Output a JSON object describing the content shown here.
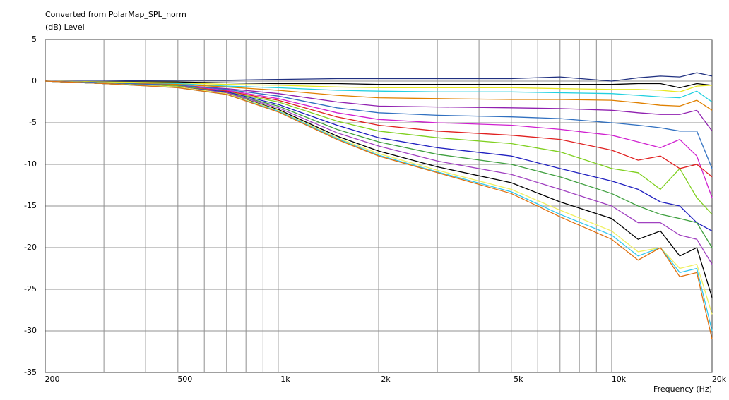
{
  "chart_data": {
    "type": "line",
    "title": "Converted from PolarMap_SPL_norm",
    "ylabel": "(dB)  Level",
    "xlabel": "Frequency  (Hz)",
    "log_x": true,
    "grid": true,
    "x": [
      200,
      300,
      500,
      700,
      1000,
      1500,
      2000,
      3000,
      5000,
      7000,
      10000,
      12000,
      14000,
      16000,
      18000,
      20000
    ],
    "xlim": [
      200,
      20000
    ],
    "xticks": [
      200,
      500,
      {
        "value": 1000,
        "label": "1k"
      },
      {
        "value": 2000,
        "label": "2k"
      },
      {
        "value": 5000,
        "label": "5k"
      },
      {
        "value": 10000,
        "label": "10k"
      },
      {
        "value": 20000,
        "label": "20k"
      }
    ],
    "xgrid": [
      300,
      400,
      600,
      700,
      800,
      900,
      3000,
      4000,
      6000,
      7000,
      8000,
      9000
    ],
    "ylim": [
      -35,
      5
    ],
    "yticks": [
      5,
      0,
      -5,
      -10,
      -15,
      -20,
      -25,
      -30,
      -35
    ],
    "series": [
      {
        "color": "#203080",
        "values": [
          0,
          0,
          0.1,
          0.1,
          0.2,
          0.3,
          0.3,
          0.3,
          0.3,
          0.5,
          0,
          0.4,
          0.6,
          0.5,
          1,
          0.6
        ]
      },
      {
        "color": "#000000",
        "values": [
          0,
          -0.1,
          -0.1,
          -0.2,
          -0.3,
          -0.3,
          -0.4,
          -0.4,
          -0.4,
          -0.4,
          -0.4,
          -0.3,
          -0.3,
          -0.8,
          -0.3,
          -0.5
        ]
      },
      {
        "color": "#e8e820",
        "values": [
          0,
          -0.1,
          -0.2,
          -0.4,
          -0.5,
          -0.7,
          -0.8,
          -0.8,
          -0.8,
          -0.9,
          -1,
          -1,
          -1.1,
          -1.3,
          -0.6,
          -0.5
        ]
      },
      {
        "color": "#20d0e0",
        "values": [
          0,
          -0.2,
          -0.3,
          -0.6,
          -0.8,
          -1.1,
          -1.2,
          -1.3,
          -1.3,
          -1.4,
          -1.5,
          -1.7,
          -1.9,
          -2,
          -1.2,
          -2.5
        ]
      },
      {
        "color": "#e08000",
        "values": [
          0,
          -0.2,
          -0.4,
          -0.7,
          -1.1,
          -1.7,
          -2,
          -2.1,
          -2.2,
          -2.2,
          -2.3,
          -2.6,
          -2.9,
          -3,
          -2.3,
          -3.5
        ]
      },
      {
        "color": "#9020b0",
        "values": [
          0,
          -0.2,
          -0.5,
          -0.9,
          -1.5,
          -2.5,
          -3,
          -3.1,
          -3.2,
          -3.3,
          -3.5,
          -3.8,
          -4,
          -4,
          -3.5,
          -6
        ]
      },
      {
        "color": "#3070c0",
        "values": [
          0,
          -0.2,
          -0.5,
          -1,
          -1.8,
          -3.2,
          -3.8,
          -4.1,
          -4.3,
          -4.5,
          -5,
          -5.3,
          -5.6,
          -6,
          -6,
          -10.5
        ]
      },
      {
        "color": "#d020d0",
        "values": [
          0,
          -0.3,
          -0.6,
          -1.1,
          -2.1,
          -3.8,
          -4.6,
          -5,
          -5.3,
          -5.8,
          -6.5,
          -7.3,
          -8,
          -7,
          -9,
          -14
        ]
      },
      {
        "color": "#e02020",
        "values": [
          0,
          -0.3,
          -0.6,
          -1.2,
          -2.3,
          -4.3,
          -5.3,
          -6,
          -6.5,
          -7,
          -8.3,
          -9.5,
          -9,
          -10.5,
          -10,
          -11.5
        ]
      },
      {
        "color": "#80d020",
        "values": [
          0,
          -0.3,
          -0.6,
          -1.3,
          -2.5,
          -4.8,
          -6,
          -6.8,
          -7.5,
          -8.5,
          -10.5,
          -11,
          -13,
          -10.5,
          -14,
          -16
        ]
      },
      {
        "color": "#2020c0",
        "values": [
          0,
          -0.3,
          -0.7,
          -1.3,
          -2.8,
          -5.3,
          -6.8,
          -8,
          -9,
          -10.5,
          -12,
          -13,
          -14.5,
          -15,
          -17,
          -18
        ]
      },
      {
        "color": "#40a040",
        "values": [
          0,
          -0.3,
          -0.7,
          -1.4,
          -3,
          -5.8,
          -7.3,
          -8.8,
          -10,
          -11.5,
          -13.5,
          -15,
          -16,
          -16.5,
          -17,
          -20
        ]
      },
      {
        "color": "#a040c0",
        "values": [
          0,
          -0.3,
          -0.7,
          -1.4,
          -3.2,
          -6.2,
          -7.8,
          -9.6,
          -11.2,
          -13,
          -15,
          -17,
          -17,
          -18.5,
          -19,
          -22
        ]
      },
      {
        "color": "#000000",
        "values": [
          0,
          -0.3,
          -0.7,
          -1.5,
          -3.4,
          -6.6,
          -8.4,
          -10.3,
          -12.2,
          -14.5,
          -16.5,
          -19,
          -18,
          -21,
          -20,
          -26
        ]
      },
      {
        "color": "#f0f060",
        "values": [
          0,
          -0.3,
          -0.7,
          -1.5,
          -3.5,
          -6.8,
          -8.7,
          -10.7,
          -13,
          -15.5,
          -18,
          -20.5,
          -20,
          -22.5,
          -22,
          -28
        ]
      },
      {
        "color": "#30c8f0",
        "values": [
          0,
          -0.3,
          -0.8,
          -1.6,
          -3.6,
          -6.9,
          -8.9,
          -10.9,
          -13.3,
          -16,
          -18.5,
          -21,
          -20,
          -23,
          -22.5,
          -30
        ]
      },
      {
        "color": "#e07010",
        "values": [
          0,
          -0.3,
          -0.8,
          -1.6,
          -3.7,
          -7,
          -9,
          -11,
          -13.5,
          -16.3,
          -19,
          -21.5,
          -20,
          -23.5,
          -23,
          -31
        ]
      }
    ]
  }
}
